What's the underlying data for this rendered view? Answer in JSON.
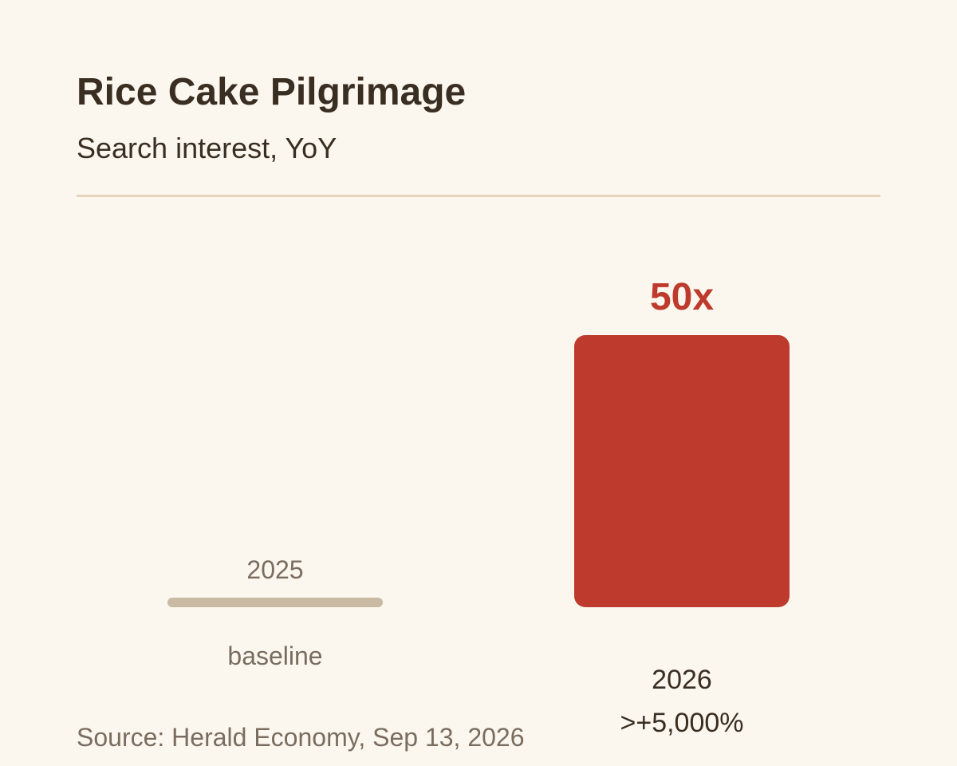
{
  "header": {
    "title": "Rice Cake Pilgrimage",
    "subtitle": "Search interest, YoY"
  },
  "footer": {
    "source": "Source: Herald Economy, Sep 13, 2026"
  },
  "colors": {
    "background": "#fbf7ee",
    "baseline_bar": "#c9bba3",
    "highlight_bar": "#bd3a2c",
    "highlight_text": "#bd3a2c",
    "muted_text": "#7a6d60",
    "dark_text": "#3a2e22",
    "divider": "#e6d4bd"
  },
  "chart_data": {
    "type": "bar",
    "title": "Rice Cake Pilgrimage",
    "subtitle": "Search interest, YoY",
    "categories": [
      "2025",
      "2026"
    ],
    "values": [
      1,
      50
    ],
    "grid": false,
    "bars": [
      {
        "category": "2025",
        "value": 1,
        "label": "baseline"
      },
      {
        "category": "2026",
        "value": 50,
        "value_label": "50x",
        "label": ">+5,000%"
      }
    ]
  }
}
